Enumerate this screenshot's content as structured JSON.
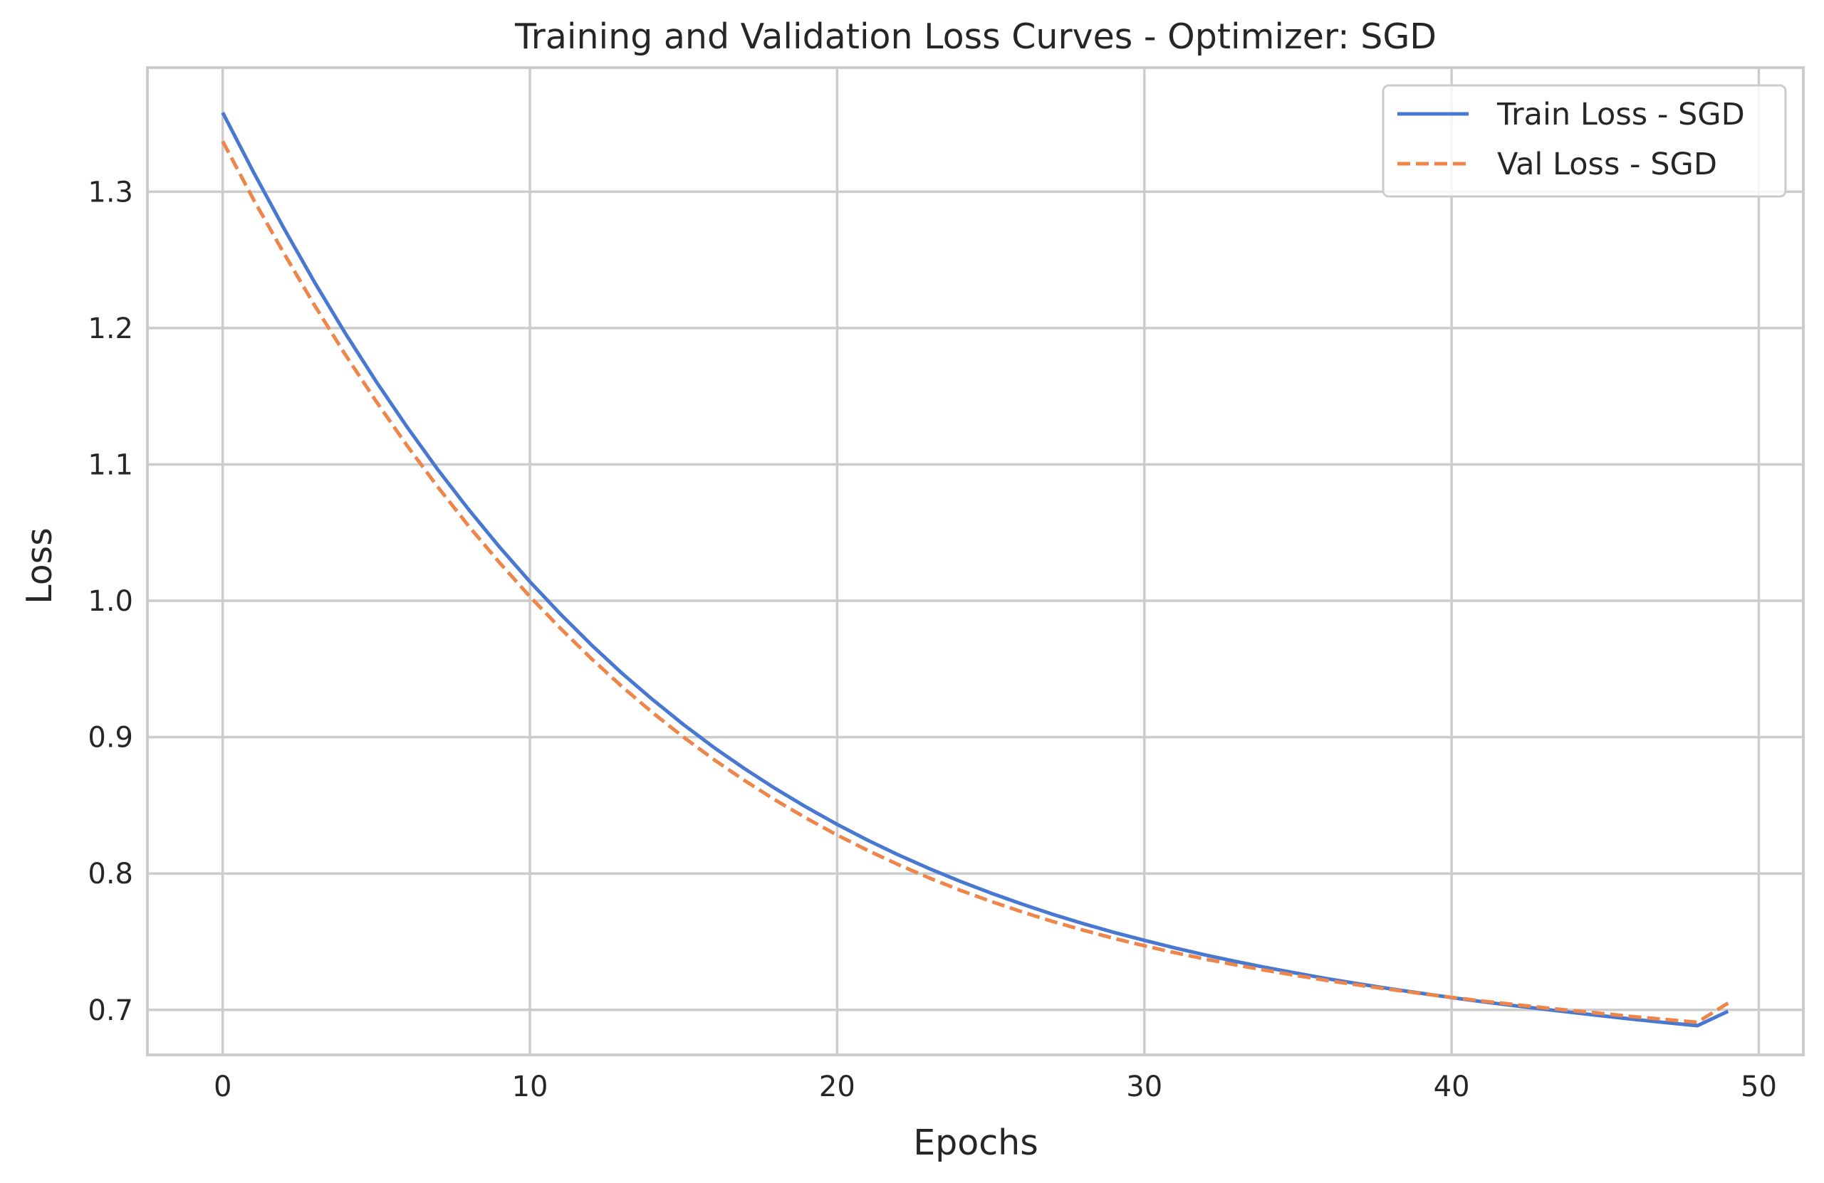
{
  "chart_data": {
    "type": "line",
    "title": "Training and Validation Loss Curves - Optimizer: SGD",
    "xlabel": "Epochs",
    "ylabel": "Loss",
    "xlim": [
      -2.45,
      51.45
    ],
    "ylim": [
      0.667,
      1.391
    ],
    "xticks": [
      0,
      10,
      20,
      30,
      40,
      50
    ],
    "yticks": [
      0.7,
      0.8,
      0.9,
      1.0,
      1.1,
      1.2,
      1.3
    ],
    "xtick_labels": [
      "0",
      "10",
      "20",
      "30",
      "40",
      "50"
    ],
    "ytick_labels": [
      "0.7",
      "0.8",
      "0.9",
      "1.0",
      "1.1",
      "1.2",
      "1.3"
    ],
    "grid": true,
    "legend_position": "top-right",
    "x": [
      0,
      1,
      2,
      3,
      4,
      5,
      6,
      7,
      8,
      9,
      10,
      11,
      12,
      13,
      14,
      15,
      16,
      17,
      18,
      19,
      20,
      21,
      22,
      23,
      24,
      25,
      26,
      27,
      28,
      29,
      30,
      31,
      32,
      33,
      34,
      35,
      36,
      37,
      38,
      39,
      40,
      41,
      42,
      43,
      44,
      45,
      46,
      47,
      48,
      49
    ],
    "series": [
      {
        "name": "Train Loss - SGD",
        "color": "#4878d0",
        "dash": "solid",
        "values": [
          1.358,
          1.3145,
          1.2728,
          1.2332,
          1.1959,
          1.1606,
          1.1275,
          1.0963,
          1.0671,
          1.0397,
          1.014,
          0.9901,
          0.9677,
          0.9468,
          0.9274,
          0.9092,
          0.8923,
          0.8767,
          0.8621,
          0.8486,
          0.836,
          0.8244,
          0.8136,
          0.8036,
          0.7943,
          0.7857,
          0.7777,
          0.7702,
          0.7633,
          0.7569,
          0.751,
          0.7454,
          0.7402,
          0.7354,
          0.7309,
          0.7267,
          0.7227,
          0.719,
          0.7155,
          0.7122,
          0.709,
          0.706,
          0.7032,
          0.7005,
          0.6979,
          0.6954,
          0.6929,
          0.6906,
          0.6884,
          0.699
        ]
      },
      {
        "name": "Val Loss - SGD",
        "color": "#ee854a",
        "dash": "dashed",
        "values": [
          1.337,
          1.2944,
          1.2545,
          1.2163,
          1.1802,
          1.1461,
          1.1138,
          1.0835,
          1.055,
          1.0282,
          1.0031,
          0.9796,
          0.9576,
          0.937,
          0.9178,
          0.9,
          0.8834,
          0.868,
          0.8537,
          0.8405,
          0.8282,
          0.8169,
          0.8064,
          0.7967,
          0.7878,
          0.7796,
          0.772,
          0.7649,
          0.7585,
          0.7525,
          0.747,
          0.7419,
          0.7372,
          0.7328,
          0.7288,
          0.725,
          0.7214,
          0.7181,
          0.715,
          0.712,
          0.7092,
          0.7065,
          0.704,
          0.7016,
          0.6993,
          0.6971,
          0.6949,
          0.6929,
          0.6909,
          0.705
        ]
      }
    ]
  }
}
